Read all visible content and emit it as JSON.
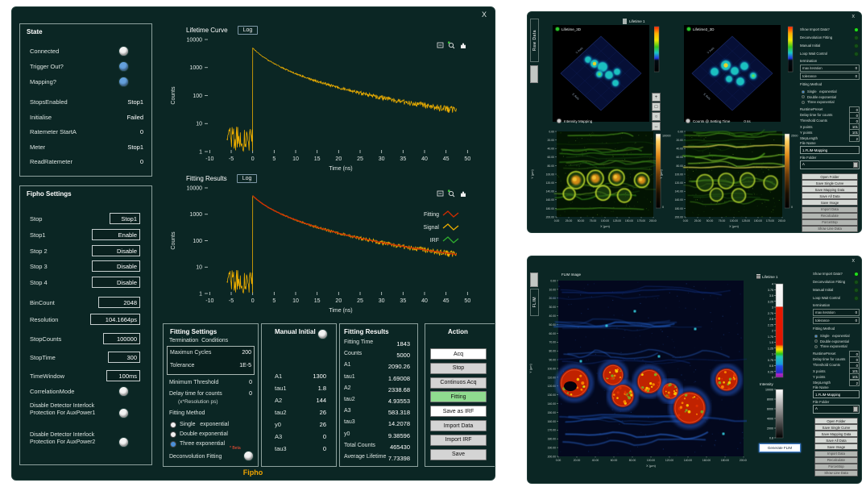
{
  "main_window": {
    "close_label": "X",
    "footer_label": "Fipho",
    "state": {
      "title": "State",
      "leds": [
        {
          "label": "Connected",
          "color": "#f2f2f2"
        },
        {
          "label": "Trigger Out?",
          "color": "#64a0dc"
        },
        {
          "label": "Mapping?",
          "color": "#64a0dc"
        }
      ],
      "fields": [
        {
          "label": "StopsEnabled",
          "value": "Stop1"
        },
        {
          "label": "Initialise",
          "value": "Failed"
        },
        {
          "label": "Ratemeter StartA",
          "value": "0"
        },
        {
          "label": "Meter",
          "value": "Stop1"
        },
        {
          "label": "ReadRatemeter",
          "value": "0"
        }
      ]
    },
    "fipho_settings": {
      "title": "Fipho Settings",
      "fields": [
        {
          "label": "Stop",
          "value": "Stop1",
          "w": 38
        },
        {
          "label": "Stop1",
          "value": "Enable",
          "w": 60
        },
        {
          "label": "Stop 2",
          "value": "Disable",
          "w": 60
        },
        {
          "label": "Stop 3",
          "value": "Disable",
          "w": 60
        },
        {
          "label": "Stop 4",
          "value": "Disable",
          "w": 60
        },
        {
          "label": "BinCount",
          "value": "2048",
          "w": 52
        },
        {
          "label": "Resolution",
          "value": "104.1664ps",
          "w": 62
        },
        {
          "label": "StopCounts",
          "value": "100000",
          "w": 46
        },
        {
          "label": "StopTime",
          "value": "300",
          "w": 40
        },
        {
          "label": "TimeWindow",
          "value": "100ms",
          "w": 42
        }
      ],
      "toggles": [
        {
          "label": "CorrelationMode"
        },
        {
          "label": "Disable Detector Interlock Protection For AuxPower1"
        },
        {
          "label": "Disable Detector Interlock Protection For AuxPower2"
        }
      ]
    },
    "fitting_settings": {
      "title": "Fitting Settings",
      "subtitle": "Termination  Conditions",
      "term_fields": [
        {
          "label": "Maximun Cycles",
          "value": "200"
        },
        {
          "label": "Tolerance",
          "value": "1E-5"
        }
      ],
      "fields": [
        {
          "label": "Minimum Threshold",
          "value": "0"
        },
        {
          "label": "Delay time for counts",
          "value": "0",
          "sub": "(x*Resolution ps)"
        }
      ],
      "method_title": "Fitting Method",
      "methods": [
        {
          "label": "Single   exponential",
          "selected": false
        },
        {
          "label": "Double exponential",
          "selected": false
        },
        {
          "label": "Three exponential",
          "selected": true
        }
      ],
      "deconv_label": "Deconvolution Fitting",
      "deconv_beta": "* Beta"
    },
    "manual_initial": {
      "title": "Manual Initial",
      "rows": [
        {
          "label": "A1",
          "value": "1300"
        },
        {
          "label": "tau1",
          "value": "1.8"
        },
        {
          "label": "A2",
          "value": "144"
        },
        {
          "label": "tau2",
          "value": "26"
        },
        {
          "label": "y0",
          "value": "26"
        },
        {
          "label": "A3",
          "value": "0"
        },
        {
          "label": "tau3",
          "value": "0"
        }
      ]
    },
    "fitting_results": {
      "title": "Fitting Results",
      "rows": [
        {
          "label": "Fitting Time",
          "value": "1843"
        },
        {
          "label": "Counts",
          "value": "5000"
        },
        {
          "label": "A1",
          "value": "2090.26"
        },
        {
          "label": "tau1",
          "value": "1.69008"
        },
        {
          "label": "A2",
          "value": "2338.68"
        },
        {
          "label": "tau2",
          "value": "4.93553"
        },
        {
          "label": "A3",
          "value": "583.318"
        },
        {
          "label": "tau3",
          "value": "14.2078"
        },
        {
          "label": "y0",
          "value": "9.38596"
        },
        {
          "label": "Total Counts",
          "value": "465430"
        },
        {
          "label": "Average Lifetime",
          "value": "7.73398"
        }
      ]
    },
    "action": {
      "title": "Action",
      "buttons": [
        {
          "label": "Acq",
          "bg": "#ffffff"
        },
        {
          "label": "Stop",
          "bg": "#d4d4d4"
        },
        {
          "label": "Continuos Acq",
          "bg": "#d4d4d4"
        },
        {
          "label": "Fitting",
          "bg": "#8fdc8f"
        },
        {
          "label": "Save as IRF",
          "bg": "#ffffff"
        },
        {
          "label": "Import Data",
          "bg": "#d4d4d4"
        },
        {
          "label": "Import IRF",
          "bg": "#d4d4d4"
        },
        {
          "label": "Save",
          "bg": "#d4d4d4"
        }
      ]
    }
  },
  "chart_data": [
    {
      "type": "line",
      "title": "Lifetime Curve",
      "log_button": "Log",
      "xlabel": "Time (ns)",
      "ylabel": "Counts",
      "y_scale": "log",
      "ylim": [
        1,
        10000
      ],
      "xlim": [
        -11,
        52
      ],
      "x_ticks": [
        -10,
        -5,
        0,
        5,
        10,
        15,
        20,
        25,
        30,
        35,
        40,
        45,
        50
      ],
      "y_ticks": [
        1,
        10,
        100,
        1000,
        10000
      ],
      "grid": false,
      "series": [
        {
          "name": "Signal",
          "color": "#edae00"
        }
      ],
      "decay_model": {
        "A1": 2090.26,
        "tau1": 1.69008,
        "A2": 2338.68,
        "tau2": 4.93553,
        "A3": 583.318,
        "tau3": 14.2078,
        "y0": 9.38596,
        "peak_counts": 5000,
        "pre_zero_noise_counts": [
          1,
          8
        ],
        "t_start": -6,
        "t_end": 47.5
      }
    },
    {
      "type": "line",
      "title": "Fitting Results",
      "log_button": "Log",
      "xlabel": "Time (ns)",
      "ylabel": "Counts",
      "y_scale": "log",
      "ylim": [
        1,
        10000
      ],
      "xlim": [
        -11,
        52
      ],
      "x_ticks": [
        -10,
        -5,
        0,
        5,
        10,
        15,
        20,
        25,
        30,
        35,
        40,
        45,
        50
      ],
      "y_ticks": [
        1,
        10,
        100,
        1000,
        10000
      ],
      "grid": false,
      "legend_position": "right",
      "series": [
        {
          "name": "Fitting",
          "color": "#d22c00"
        },
        {
          "name": "Signal",
          "color": "#edae00"
        },
        {
          "name": "IRF",
          "color": "#2fae2f"
        }
      ],
      "decay_model": {
        "A1": 2090.26,
        "tau1": 1.69008,
        "A2": 2338.68,
        "tau2": 4.93553,
        "A3": 583.318,
        "tau3": 14.2078,
        "y0": 9.38596,
        "peak_counts": 5000,
        "pre_zero_noise_counts": [
          1,
          8
        ],
        "t_start": -6,
        "t_end": 47.5
      }
    }
  ],
  "raw_window": {
    "close_label": "x",
    "tab_label": "Raw Data",
    "lifetime_selector_label": "Lifetime 1",
    "plots_3d": [
      {
        "title": "Lifetime_3D",
        "x_axis_label": "X Axis",
        "y_axis_label": "Y Axis"
      },
      {
        "title": "Lifetime2_3D",
        "x_axis_label": "X Axis",
        "y_axis_label": "Y Axis"
      }
    ],
    "tool_buttons": [
      {
        "name": "cursor-tool-button",
        "glyph": "+"
      },
      {
        "name": "zoom-tool-button",
        "glyph": "□"
      },
      {
        "name": "pan-tool-button",
        "glyph": "○"
      },
      {
        "name": "scale-tool-button",
        "glyph": "↔"
      }
    ],
    "image_plots": [
      {
        "title": "Intensity Mapping",
        "colorbar_max": "10000",
        "colorbar_min": "0"
      },
      {
        "title": "Counts @ Setting Time",
        "time_value": "0",
        "time_unit": "ns",
        "colorbar_max": "2500",
        "colorbar_min": "0"
      }
    ],
    "image_axis": {
      "xlabel": "X (µm)",
      "ylabel": "Y (µm)",
      "x_ticks": [
        0,
        25,
        50,
        75,
        100,
        125,
        150,
        175,
        200
      ],
      "y_ticks": [
        0,
        20,
        40,
        60,
        80,
        100,
        120,
        140,
        160,
        180,
        200
      ]
    }
  },
  "flim_window": {
    "close_label": "x",
    "tab_label": "FLIM",
    "image_title": "FLIM Image",
    "axis": {
      "xlabel": "X (µm)",
      "ylabel": "Y (µm)",
      "x_ticks": [
        0,
        20,
        40,
        60,
        80,
        100,
        120,
        140,
        160,
        180,
        200
      ],
      "y_ticks": [
        0,
        10,
        20,
        30,
        40,
        50,
        60,
        70,
        80,
        90,
        100,
        110,
        120,
        130,
        140,
        150,
        160,
        170,
        180,
        190,
        200
      ]
    },
    "lifetime_bar": {
      "title": "Lifetime 1",
      "ticks": [
        "4",
        "3.75",
        "3.5",
        "3.25",
        "3",
        "2.75",
        "2.5",
        "2.25",
        "2",
        "1.75",
        "1.5",
        "1.25",
        "1",
        "0.75",
        "0.5",
        "0.25",
        "0"
      ]
    },
    "intensity_bar": {
      "title": "Intensity",
      "ticks": [
        "10000",
        "8000",
        "6000",
        "4000",
        "2000",
        "0.8"
      ]
    },
    "generate_button_label": "Generate FLIM"
  },
  "settings_column": {
    "led_rows": [
      {
        "label": "Show Import Data?",
        "on": true
      },
      {
        "label": "Deconvolution Fitting",
        "on": false
      },
      {
        "label": "Manual Initial",
        "on": false
      },
      {
        "label": "Loop Wait Control",
        "on": false
      }
    ],
    "termination_label": "termination",
    "term_fields": [
      {
        "label": "max iteration",
        "value": "0"
      },
      {
        "label": "tolerance",
        "value": "0"
      }
    ],
    "method_label": "Fitting Method",
    "methods": [
      {
        "label": "Single   exponential",
        "selected": true
      },
      {
        "label": "Double exponential",
        "selected": false
      },
      {
        "label": "Three exponential",
        "selected": false
      }
    ],
    "fields": [
      {
        "label": "RuntimePreset",
        "value": "0"
      },
      {
        "label": "Delay time for counts",
        "value": "0"
      },
      {
        "label": "Threshold Counts",
        "value": "0"
      },
      {
        "label": "X points",
        "value": "101"
      },
      {
        "label": "Y points",
        "value": "101"
      },
      {
        "label": "StepLength",
        "value": "2"
      }
    ],
    "file_name_label": "File Name",
    "file_name_value": "1.FLIM-Mapping",
    "file_folder_label": "File Folder",
    "file_folder_value": "A",
    "buttons": [
      {
        "label": "Open Folder",
        "enabled": true
      },
      {
        "label": "Save Single Curve",
        "enabled": true
      },
      {
        "label": "Save Mapping Data",
        "enabled": true
      },
      {
        "label": "Save All Data",
        "enabled": true
      },
      {
        "label": "Save Image",
        "enabled": true
      },
      {
        "label": "Import Data",
        "enabled": false
      },
      {
        "label": "Recalculate",
        "enabled": false
      },
      {
        "label": "ForceStop",
        "enabled": false
      },
      {
        "label": "Show Line Data",
        "enabled": false
      }
    ]
  }
}
